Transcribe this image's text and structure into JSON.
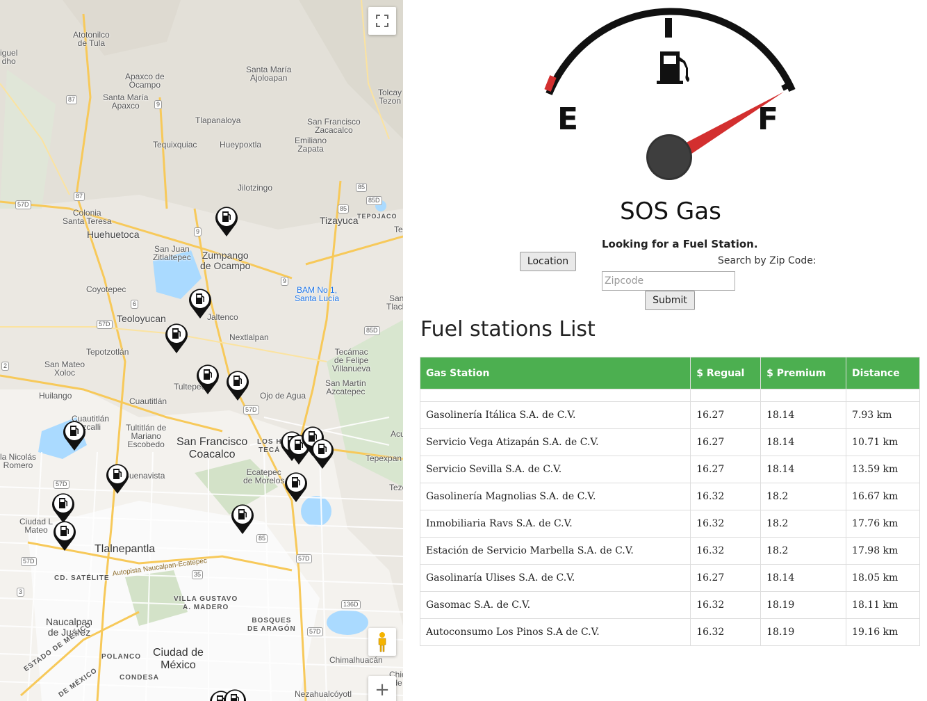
{
  "map": {
    "fullscreen_icon": "fullscreen-icon",
    "pegman_icon": "pegman-icon",
    "zoom_in_label": "+",
    "labels": [
      {
        "text": "Atotonilco\nde Tula"
      },
      {
        "text": "iguel\ndho"
      },
      {
        "text": "Apaxco de\nOcampo"
      },
      {
        "text": "Santa María\nAjoloapan"
      },
      {
        "text": "Santa María\nApaxco"
      },
      {
        "text": "Tolcay\nTezon"
      },
      {
        "text": "Tlapanaloya"
      },
      {
        "text": "San Francisco\nZacacalco"
      },
      {
        "text": "Tequixquiac"
      },
      {
        "text": "Hueypoxtla"
      },
      {
        "text": "Emiliano\nZapata"
      },
      {
        "text": "Jilotzingo"
      },
      {
        "text": "Colonia\nSanta Teresa"
      },
      {
        "text": "Tizayuca"
      },
      {
        "text": "TEPOJACO"
      },
      {
        "text": "Te"
      },
      {
        "text": "Huehuetoca"
      },
      {
        "text": "San Juan\nZitlaltepec"
      },
      {
        "text": "Zumpango\nde Ocampo"
      },
      {
        "text": "Coyotepec"
      },
      {
        "text": "BAM No 1,\nSanta Lucía"
      },
      {
        "text": "San\nTlach"
      },
      {
        "text": "Teoloyucan"
      },
      {
        "text": "Jaltenco"
      },
      {
        "text": "Nextlalpan"
      },
      {
        "text": "Tepotzotlán"
      },
      {
        "text": "Tecámac\nde Felipe\nVillanueva"
      },
      {
        "text": "San Mateo\nXoloc"
      },
      {
        "text": "Tultepec"
      },
      {
        "text": "Ojo de Agua"
      },
      {
        "text": "San Martín\nAzcatepec"
      },
      {
        "text": "Huilango"
      },
      {
        "text": "Cuautitlán"
      },
      {
        "text": "Cuautitlán\nIzcalli"
      },
      {
        "text": "Tultitlán de\nMariano\nEscobedo"
      },
      {
        "text": "San Francisco\nCoacalco"
      },
      {
        "text": "LOS H\nTECÁ"
      },
      {
        "text": "Acu"
      },
      {
        "text": "la Nicolás\nRomero"
      },
      {
        "text": "Tepexpan"
      },
      {
        "text": "Ecatepec\nde Morelos"
      },
      {
        "text": "Buenavista"
      },
      {
        "text": "Tezo"
      },
      {
        "text": "Ciudad L\nMateo"
      },
      {
        "text": "Tlalnepantla"
      },
      {
        "text": "Autopista Naucalpan-Ecatepec"
      },
      {
        "text": "CD. SATÉLITE"
      },
      {
        "text": "VILLA GUSTAVO\nA. MADERO"
      },
      {
        "text": "BOSQUES\nDE ARAGÓN"
      },
      {
        "text": "Naucalpan\nde Juárez"
      },
      {
        "text": "POLANCO"
      },
      {
        "text": "Ciudad de\nMéxico"
      },
      {
        "text": "Chimalhuacán"
      },
      {
        "text": "ESTADO DE MÉXICO"
      },
      {
        "text": "DE MÉXICO"
      },
      {
        "text": "CONDESA"
      },
      {
        "text": "Chic\nde"
      },
      {
        "text": "Nezahualcóyotl"
      }
    ],
    "route_shields": [
      "87",
      "9",
      "57D",
      "87",
      "85",
      "85D",
      "9",
      "85",
      "6",
      "57D",
      "9",
      "85D",
      "2",
      "57D",
      "57D",
      "85",
      "57D",
      "3",
      "57D",
      "136D",
      "57D",
      "35"
    ]
  },
  "gauge": {
    "empty_label": "E",
    "full_label": "F",
    "pump_icon": "fuel-pump-icon",
    "needle_color": "#d32f2f"
  },
  "header": {
    "title": "SOS Gas",
    "tagline": "Looking for a Fuel Station."
  },
  "controls": {
    "location_label": "Location",
    "zip_label": "Search by Zip Code:",
    "zip_placeholder": "Zipcode",
    "zip_value": "",
    "submit_label": "Submit"
  },
  "list": {
    "title": "Fuel stations List",
    "header_color": "#4caf50",
    "columns": [
      "Gas Station",
      "$ Regual",
      "$ Premium",
      "Distance"
    ],
    "rows": [
      [
        "Gasolinería Itálica S.A. de C.V.",
        "16.27",
        "18.14",
        "7.93 km"
      ],
      [
        "Servicio Vega Atizapán S.A. de C.V.",
        "16.27",
        "18.14",
        "10.71 km"
      ],
      [
        "Servicio Sevilla S.A. de C.V.",
        "16.27",
        "18.14",
        "13.59 km"
      ],
      [
        "Gasolinería Magnolias S.A. de C.V.",
        "16.32",
        "18.2",
        "16.67 km"
      ],
      [
        "Inmobiliaria Ravs S.A. de C.V.",
        "16.32",
        "18.2",
        "17.76 km"
      ],
      [
        "Estación de Servicio Marbella S.A. de C.V.",
        "16.32",
        "18.2",
        "17.98 km"
      ],
      [
        "Gasolinaría Ulises S.A. de C.V.",
        "16.27",
        "18.14",
        "18.05 km"
      ],
      [
        "Gasomac S.A. de C.V.",
        "16.32",
        "18.19",
        "18.11 km"
      ],
      [
        "Autoconsumo Los Pinos S.A de C.V.",
        "16.32",
        "18.19",
        "19.16 km"
      ]
    ]
  }
}
